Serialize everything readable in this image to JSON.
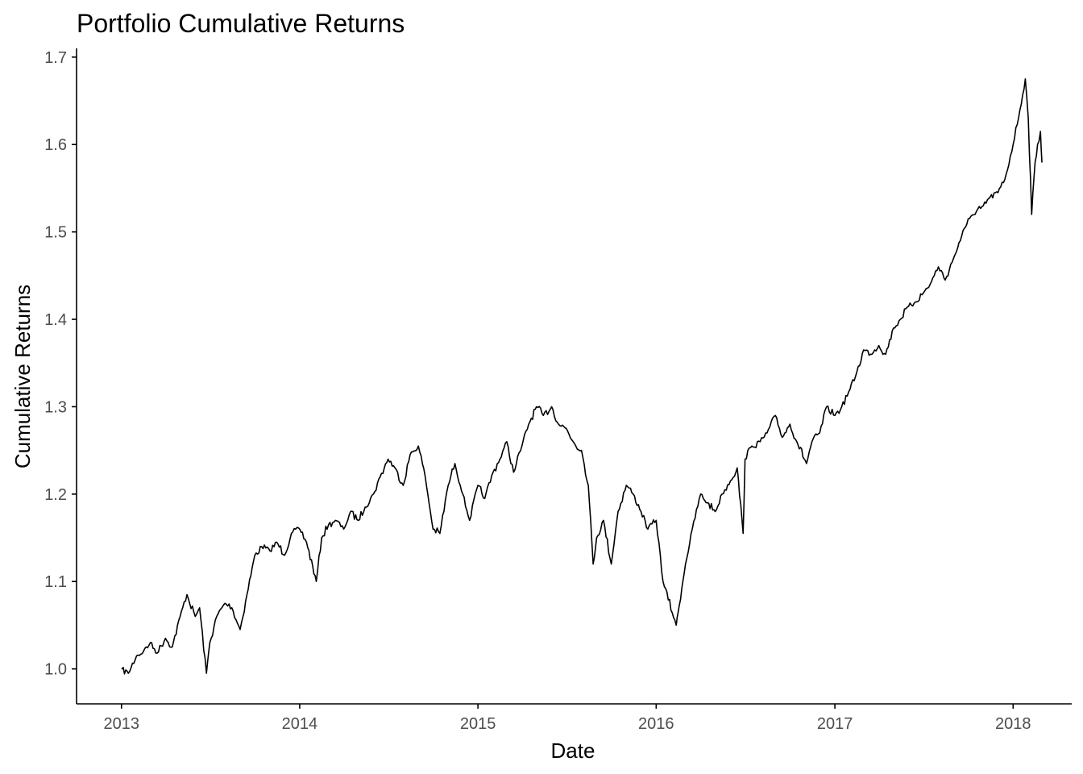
{
  "chart_data": {
    "type": "line",
    "title": "Portfolio Cumulative Returns",
    "xlabel": "Date",
    "ylabel": "Cumulative Returns",
    "xlim": [
      "2012-10-01",
      "2018-05-01"
    ],
    "ylim": [
      0.96,
      1.71
    ],
    "x_ticks": [
      "2013-01-01",
      "2014-01-01",
      "2015-01-01",
      "2016-01-01",
      "2017-01-01",
      "2018-01-01"
    ],
    "x_tick_labels": [
      "2013",
      "2014",
      "2015",
      "2016",
      "2017",
      "2018"
    ],
    "y_ticks": [
      1.0,
      1.1,
      1.2,
      1.3,
      1.4,
      1.5,
      1.6,
      1.7
    ],
    "y_tick_labels": [
      "1.0",
      "1.1",
      "1.2",
      "1.3",
      "1.4",
      "1.5",
      "1.6",
      "1.7"
    ],
    "grid": false,
    "legend": "none",
    "line_color": "#000000",
    "series": [
      {
        "x": [
          "2013-01-02",
          "2013-01-15",
          "2013-02-01",
          "2013-02-15",
          "2013-03-01",
          "2013-03-15",
          "2013-04-01",
          "2013-04-15",
          "2013-05-01",
          "2013-05-15",
          "2013-06-01",
          "2013-06-10",
          "2013-06-24",
          "2013-07-01",
          "2013-07-15",
          "2013-08-01",
          "2013-08-15",
          "2013-09-01",
          "2013-09-15",
          "2013-10-01",
          "2013-10-15",
          "2013-11-01",
          "2013-11-15",
          "2013-12-01",
          "2013-12-15",
          "2014-01-01",
          "2014-01-15",
          "2014-02-04",
          "2014-02-15",
          "2014-03-01",
          "2014-03-15",
          "2014-04-01",
          "2014-04-15",
          "2014-05-01",
          "2014-05-15",
          "2014-06-01",
          "2014-06-15",
          "2014-07-01",
          "2014-07-15",
          "2014-08-01",
          "2014-08-15",
          "2014-09-01",
          "2014-09-15",
          "2014-10-01",
          "2014-10-15",
          "2014-11-01",
          "2014-11-15",
          "2014-12-01",
          "2014-12-15",
          "2015-01-01",
          "2015-01-15",
          "2015-02-01",
          "2015-02-15",
          "2015-03-01",
          "2015-03-15",
          "2015-04-01",
          "2015-04-15",
          "2015-05-01",
          "2015-05-15",
          "2015-06-01",
          "2015-06-15",
          "2015-07-01",
          "2015-07-15",
          "2015-08-01",
          "2015-08-15",
          "2015-08-25",
          "2015-09-01",
          "2015-09-15",
          "2015-10-01",
          "2015-10-15",
          "2015-11-01",
          "2015-11-15",
          "2015-12-01",
          "2015-12-15",
          "2016-01-01",
          "2016-01-15",
          "2016-02-11",
          "2016-02-15",
          "2016-03-01",
          "2016-03-15",
          "2016-04-01",
          "2016-04-15",
          "2016-05-01",
          "2016-05-15",
          "2016-06-01",
          "2016-06-15",
          "2016-06-27",
          "2016-07-01",
          "2016-07-15",
          "2016-08-01",
          "2016-08-15",
          "2016-09-01",
          "2016-09-15",
          "2016-10-01",
          "2016-10-15",
          "2016-11-04",
          "2016-11-15",
          "2016-12-01",
          "2016-12-15",
          "2017-01-01",
          "2017-01-15",
          "2017-02-01",
          "2017-02-15",
          "2017-03-01",
          "2017-03-15",
          "2017-04-01",
          "2017-04-15",
          "2017-05-01",
          "2017-05-15",
          "2017-06-01",
          "2017-06-15",
          "2017-07-01",
          "2017-07-15",
          "2017-08-01",
          "2017-08-15",
          "2017-09-01",
          "2017-09-15",
          "2017-10-01",
          "2017-10-15",
          "2017-11-01",
          "2017-11-15",
          "2017-12-01",
          "2017-12-15",
          "2018-01-01",
          "2018-01-15",
          "2018-01-26",
          "2018-02-01",
          "2018-02-08",
          "2018-02-15",
          "2018-02-20",
          "2018-02-26",
          "2018-03-01"
        ],
        "values": [
          1.0,
          0.995,
          1.015,
          1.02,
          1.03,
          1.018,
          1.035,
          1.025,
          1.06,
          1.085,
          1.06,
          1.07,
          0.995,
          1.03,
          1.06,
          1.075,
          1.07,
          1.045,
          1.085,
          1.13,
          1.14,
          1.135,
          1.145,
          1.13,
          1.155,
          1.16,
          1.145,
          1.1,
          1.15,
          1.165,
          1.17,
          1.16,
          1.18,
          1.17,
          1.185,
          1.2,
          1.22,
          1.24,
          1.23,
          1.21,
          1.245,
          1.255,
          1.22,
          1.16,
          1.155,
          1.21,
          1.235,
          1.2,
          1.17,
          1.21,
          1.195,
          1.225,
          1.24,
          1.26,
          1.225,
          1.255,
          1.28,
          1.3,
          1.29,
          1.3,
          1.28,
          1.275,
          1.26,
          1.25,
          1.21,
          1.12,
          1.15,
          1.17,
          1.12,
          1.18,
          1.21,
          1.2,
          1.18,
          1.16,
          1.17,
          1.1,
          1.05,
          1.065,
          1.12,
          1.16,
          1.2,
          1.19,
          1.18,
          1.2,
          1.215,
          1.23,
          1.155,
          1.24,
          1.255,
          1.26,
          1.27,
          1.29,
          1.265,
          1.28,
          1.26,
          1.235,
          1.26,
          1.27,
          1.3,
          1.29,
          1.3,
          1.32,
          1.34,
          1.365,
          1.36,
          1.37,
          1.36,
          1.39,
          1.4,
          1.415,
          1.42,
          1.43,
          1.44,
          1.46,
          1.445,
          1.47,
          1.49,
          1.515,
          1.52,
          1.53,
          1.54,
          1.545,
          1.56,
          1.6,
          1.64,
          1.675,
          1.63,
          1.52,
          1.58,
          1.6,
          1.615,
          1.58
        ]
      }
    ]
  }
}
